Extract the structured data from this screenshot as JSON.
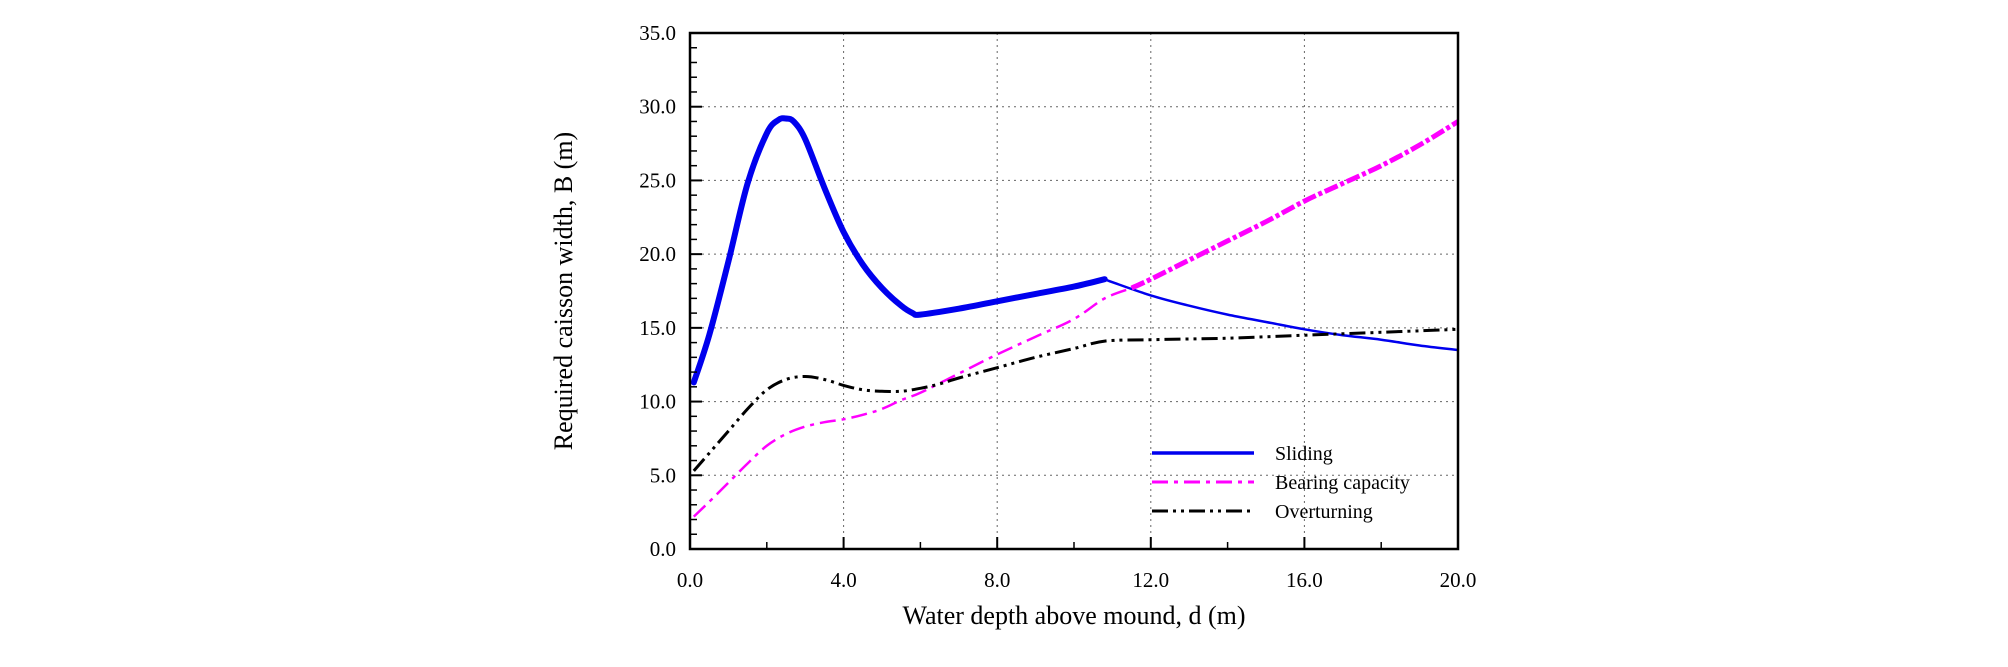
{
  "chart_data": {
    "type": "line",
    "title": "",
    "xlabel": "Water depth above mound, d (m)",
    "ylabel": "Required caisson width, B (m)",
    "xlim": [
      0,
      20
    ],
    "ylim": [
      0,
      35
    ],
    "x_ticks": [
      "0.0",
      "4.0",
      "8.0",
      "12.0",
      "16.0",
      "20.0"
    ],
    "y_ticks": [
      "0.0",
      "5.0",
      "10.0",
      "15.0",
      "20.0",
      "25.0",
      "30.0",
      "35.0"
    ],
    "grid": true,
    "legend_position": "bottom-right",
    "series": [
      {
        "name": "Sliding",
        "color": "#0000ee",
        "style": "solid",
        "x": [
          0.1,
          0.5,
          1.0,
          1.5,
          2.0,
          2.3,
          2.5,
          2.7,
          3.0,
          3.5,
          4.0,
          4.5,
          5.0,
          5.5,
          5.8,
          6.0,
          7.0,
          8.0,
          9.0,
          10.0,
          10.8,
          11.0,
          12.0,
          13.0,
          14.0,
          15.0,
          16.0,
          17.0,
          18.0,
          19.0,
          20.0
        ],
        "y": [
          11.3,
          14.5,
          19.5,
          24.8,
          28.2,
          29.1,
          29.2,
          29.0,
          27.8,
          24.5,
          21.5,
          19.3,
          17.7,
          16.5,
          16.0,
          15.9,
          16.3,
          16.8,
          17.3,
          17.8,
          18.3,
          18.1,
          17.2,
          16.5,
          15.9,
          15.4,
          14.9,
          14.5,
          14.2,
          13.8,
          13.5
        ]
      },
      {
        "name": "Bearing capacity",
        "color": "#ff00ff",
        "style": "dash-dot",
        "x": [
          0.1,
          0.5,
          1.0,
          1.5,
          2.0,
          2.5,
          3.0,
          3.5,
          4.0,
          4.5,
          5.0,
          5.5,
          6.0,
          7.0,
          8.0,
          9.0,
          10.0,
          10.8,
          11.5,
          12.0,
          13.0,
          14.0,
          15.0,
          16.0,
          17.0,
          18.0,
          19.0,
          20.0
        ],
        "y": [
          2.2,
          3.2,
          4.5,
          5.8,
          7.0,
          7.8,
          8.3,
          8.6,
          8.8,
          9.1,
          9.5,
          10.1,
          10.6,
          11.9,
          13.2,
          14.4,
          15.6,
          17.0,
          17.7,
          18.3,
          19.6,
          20.9,
          22.2,
          23.6,
          24.8,
          26.0,
          27.4,
          29.0
        ]
      },
      {
        "name": "Overturning",
        "color": "#000000",
        "style": "dash-dot-dot",
        "x": [
          0.1,
          0.5,
          1.0,
          1.5,
          2.0,
          2.5,
          3.0,
          3.5,
          4.0,
          4.5,
          5.0,
          5.5,
          6.0,
          6.5,
          7.0,
          8.0,
          9.0,
          10.0,
          10.8,
          12.0,
          14.0,
          16.0,
          18.0,
          20.0
        ],
        "y": [
          5.3,
          6.5,
          8.0,
          9.5,
          10.8,
          11.5,
          11.7,
          11.5,
          11.1,
          10.8,
          10.7,
          10.7,
          10.9,
          11.2,
          11.6,
          12.3,
          13.0,
          13.6,
          14.1,
          14.2,
          14.3,
          14.5,
          14.7,
          14.9
        ]
      }
    ]
  }
}
